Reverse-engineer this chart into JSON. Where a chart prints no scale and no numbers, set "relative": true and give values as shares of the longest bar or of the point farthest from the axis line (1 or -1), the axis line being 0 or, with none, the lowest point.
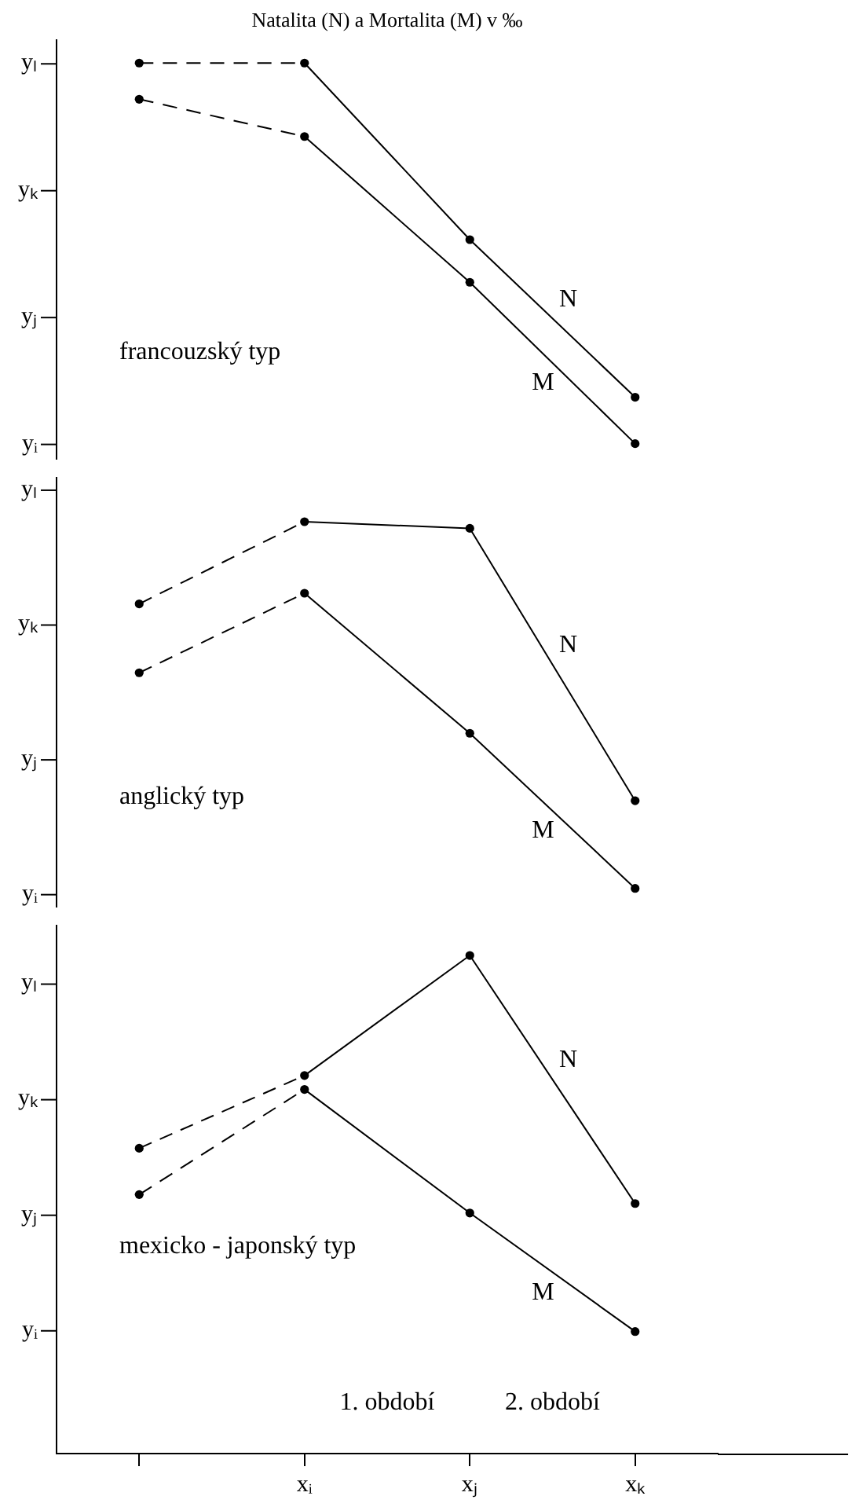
{
  "chart_data": [
    {
      "type": "line",
      "title": "Natalita (N) a Mortalita (M) v ‰",
      "subtitle": "francouzský typ",
      "relative": true,
      "grid": false,
      "marker": "circle",
      "tick_labels": false,
      "categories": [
        null,
        null,
        null,
        null
      ],
      "series": [
        {
          "name": "N",
          "color": "#000000",
          "line_style": "dashed",
          "values": [
            1.0,
            1.0,
            0.536,
            0.122
          ]
        },
        {
          "name": "M",
          "color": "#000000",
          "line_style": "dashed",
          "values": [
            0.905,
            0.807,
            0.424,
            0
          ]
        }
      ],
      "annotations": [
        "yᵢ",
        "yⱼ",
        "yₖ",
        "yₗ"
      ]
    },
    {
      "type": "line",
      "subtitle": "anglický typ",
      "relative": true,
      "grid": false,
      "marker": "circle",
      "tick_labels": false,
      "categories": [
        null,
        null,
        null,
        null
      ],
      "series": [
        {
          "name": "N",
          "color": "#000000",
          "line_style": "dashed",
          "values": [
            0.776,
            1.0,
            0.982,
            0.239
          ]
        },
        {
          "name": "M",
          "color": "#000000",
          "line_style": "dashed",
          "values": [
            0.588,
            0.805,
            0.423,
            0
          ]
        }
      ],
      "annotations": [
        "yᵢ",
        "yⱼ",
        "yₖ",
        "yₗ"
      ]
    },
    {
      "type": "line",
      "subtitle": "mexicko - japonský typ",
      "relative": true,
      "grid": false,
      "marker": "circle",
      "tick_labels": "x",
      "categories": [
        null,
        "xᵢ",
        "xⱼ",
        "xₖ"
      ],
      "series": [
        {
          "name": "N",
          "color": "#000000",
          "line_style": "dashed",
          "values": [
            0.613,
            0.759,
            1.0,
            0.502
          ]
        },
        {
          "name": "M",
          "color": "#000000",
          "line_style": "dashed",
          "values": [
            0.52,
            0.731,
            0.483,
            0.245
          ]
        }
      ],
      "annotations": [
        "yᵢ",
        "yⱼ",
        "yₖ",
        "yₗ",
        "1. období",
        "2. období"
      ]
    }
  ]
}
